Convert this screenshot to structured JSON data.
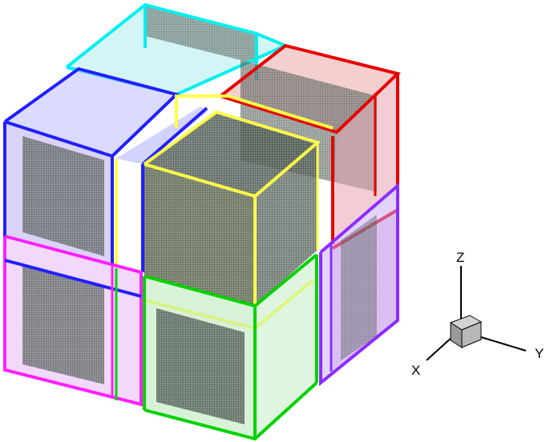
{
  "axes": {
    "x_label": "X",
    "y_label": "Y",
    "z_label": "Z"
  },
  "colors": {
    "cyan": "#00f0f0",
    "red": "#e60000",
    "blue": "#2020ff",
    "yellow": "#ffff4a",
    "magenta": "#ff20ff",
    "green": "#00d200",
    "violet": "#8c2cff",
    "mesh_dark": "#3c4a40",
    "triad_cube": "#a8a8a8"
  },
  "blocks": [
    {
      "name": "cyan-block",
      "color": "cyan"
    },
    {
      "name": "red-upper-block",
      "color": "red"
    },
    {
      "name": "red-lower-block",
      "color": "red"
    },
    {
      "name": "blue-upper-left-block",
      "color": "blue"
    },
    {
      "name": "blue-upper-mid-block",
      "color": "blue"
    },
    {
      "name": "yellow-center-block",
      "color": "yellow"
    },
    {
      "name": "magenta-lower-left-block",
      "color": "magenta"
    },
    {
      "name": "green-lower-front-block",
      "color": "green"
    },
    {
      "name": "violet-lower-right-block",
      "color": "violet"
    }
  ]
}
